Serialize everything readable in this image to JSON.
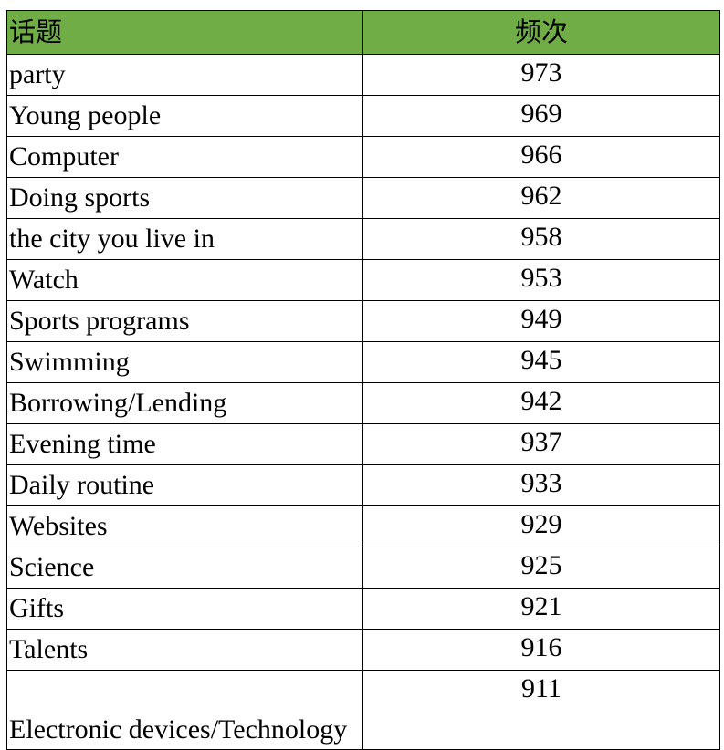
{
  "header": {
    "topic": "话题",
    "frequency": "频次"
  },
  "colors": {
    "header_bg": "#70ad47"
  },
  "rows": [
    {
      "topic": "party",
      "frequency": "973"
    },
    {
      "topic": "Young people",
      "frequency": "969"
    },
    {
      "topic": "Computer",
      "frequency": "966"
    },
    {
      "topic": "Doing sports",
      "frequency": "962"
    },
    {
      "topic": "the city you live in",
      "frequency": "958"
    },
    {
      "topic": "Watch",
      "frequency": "953"
    },
    {
      "topic": "Sports programs",
      "frequency": "949"
    },
    {
      "topic": "Swimming",
      "frequency": "945"
    },
    {
      "topic": "Borrowing/Lending",
      "frequency": "942"
    },
    {
      "topic": "Evening time",
      "frequency": "937"
    },
    {
      "topic": "Daily routine",
      "frequency": "933"
    },
    {
      "topic": "Websites",
      "frequency": "929"
    },
    {
      "topic": "Science",
      "frequency": "925"
    },
    {
      "topic": "Gifts",
      "frequency": "921"
    },
    {
      "topic": "Talents",
      "frequency": "916"
    },
    {
      "topic": "Electronic devices/Technology",
      "frequency": "911"
    }
  ]
}
